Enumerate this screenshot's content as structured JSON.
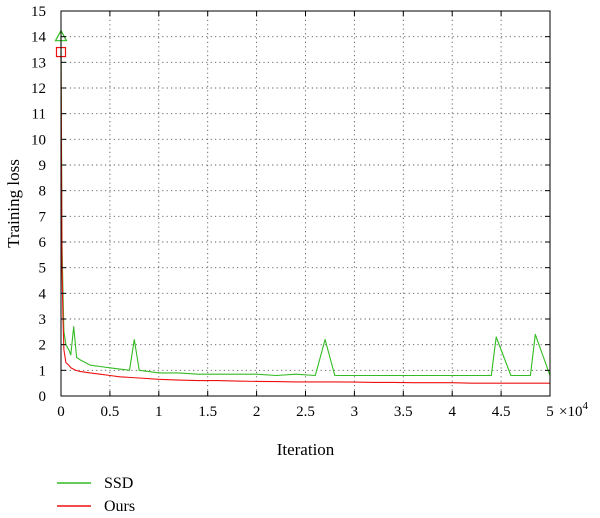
{
  "chart_data": {
    "type": "line",
    "title": "",
    "xlabel": "Iteration",
    "ylabel": "Training loss",
    "x_multiplier_label": "×10",
    "x_multiplier_exp": "4",
    "xlim": [
      0,
      5
    ],
    "ylim": [
      0,
      15
    ],
    "x_ticks": [
      0,
      0.5,
      1,
      1.5,
      2,
      2.5,
      3,
      3.5,
      4,
      4.5,
      5
    ],
    "x_tick_labels": [
      "0",
      "0.5",
      "1",
      "1.5",
      "2",
      "2.5",
      "3",
      "3.5",
      "4",
      "4.5",
      "5"
    ],
    "y_ticks": [
      0,
      1,
      2,
      3,
      4,
      5,
      6,
      7,
      8,
      9,
      10,
      11,
      12,
      13,
      14,
      15
    ],
    "y_tick_labels": [
      "0",
      "1",
      "2",
      "3",
      "4",
      "5",
      "6",
      "7",
      "8",
      "9",
      "10",
      "11",
      "12",
      "13",
      "14",
      "15"
    ],
    "grid": true,
    "legend_position": "below-left",
    "series": [
      {
        "name": "SSD",
        "color": "#33bb22",
        "marker": "triangle",
        "x": [
          0,
          0.005,
          0.01,
          0.02,
          0.03,
          0.05,
          0.08,
          0.1,
          0.13,
          0.16,
          0.2,
          0.25,
          0.3,
          0.4,
          0.5,
          0.6,
          0.7,
          0.75,
          0.8,
          0.9,
          1.0,
          1.2,
          1.4,
          1.6,
          1.8,
          2.0,
          2.2,
          2.4,
          2.6,
          2.7,
          2.8,
          3.0,
          3.2,
          3.4,
          3.6,
          3.8,
          4.0,
          4.2,
          4.4,
          4.45,
          4.6,
          4.8,
          4.85,
          5.0
        ],
        "values": [
          14.0,
          10.0,
          6.0,
          4.0,
          2.5,
          2.0,
          1.8,
          1.6,
          2.7,
          1.5,
          1.4,
          1.3,
          1.2,
          1.15,
          1.1,
          1.05,
          1.0,
          2.2,
          1.0,
          0.95,
          0.9,
          0.9,
          0.85,
          0.85,
          0.85,
          0.85,
          0.8,
          0.85,
          0.8,
          2.2,
          0.8,
          0.8,
          0.8,
          0.8,
          0.8,
          0.8,
          0.8,
          0.8,
          0.8,
          2.3,
          0.8,
          0.8,
          2.4,
          0.8
        ]
      },
      {
        "name": "Ours",
        "color": "#ee1111",
        "marker": "square",
        "x": [
          0,
          0.005,
          0.01,
          0.02,
          0.03,
          0.05,
          0.08,
          0.1,
          0.15,
          0.2,
          0.3,
          0.4,
          0.5,
          0.6,
          0.8,
          1.0,
          1.2,
          1.4,
          1.6,
          1.8,
          2.0,
          2.2,
          2.4,
          2.6,
          2.8,
          3.0,
          3.2,
          3.4,
          3.6,
          3.8,
          4.0,
          4.2,
          4.4,
          4.6,
          4.8,
          5.0
        ],
        "values": [
          13.4,
          9.0,
          5.0,
          3.0,
          1.8,
          1.3,
          1.2,
          1.1,
          1.0,
          0.95,
          0.9,
          0.85,
          0.8,
          0.75,
          0.7,
          0.65,
          0.62,
          0.6,
          0.6,
          0.58,
          0.57,
          0.56,
          0.55,
          0.55,
          0.55,
          0.54,
          0.53,
          0.53,
          0.52,
          0.52,
          0.52,
          0.5,
          0.5,
          0.5,
          0.5,
          0.5
        ]
      }
    ]
  }
}
